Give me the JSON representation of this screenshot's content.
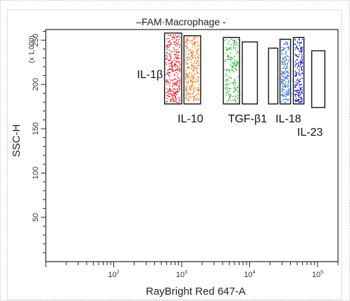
{
  "chart_data": {
    "type": "scatter",
    "title": "–FAM·Macrophage -",
    "xlabel": "RayBright Red 647-A",
    "ylabel": "SSC-H",
    "y_multiplier": "(x 1,000)",
    "x_scale": "log",
    "xlim": [
      10,
      200000
    ],
    "ylim": [
      0,
      262
    ],
    "x_ticks": [
      {
        "base": "10",
        "exp": "2",
        "value": 100
      },
      {
        "base": "10",
        "exp": "3",
        "value": 1000
      },
      {
        "base": "10",
        "exp": "4",
        "value": 10000
      },
      {
        "base": "10",
        "exp": "5",
        "value": 100000
      }
    ],
    "y_ticks": [
      50,
      100,
      150,
      200,
      250
    ],
    "grid": false,
    "gates": [
      {
        "xmin": 560,
        "xmax": 1000,
        "ymin": 178,
        "ymax": 258,
        "color": "#e8252a",
        "events": 320
      },
      {
        "xmin": 1080,
        "xmax": 1900,
        "ymin": 178,
        "ymax": 255,
        "color": "#f47d20",
        "events": 280
      },
      {
        "xmin": 4100,
        "xmax": 7100,
        "ymin": 178,
        "ymax": 253,
        "color": "#2cb531",
        "events": 170
      },
      {
        "xmin": 7800,
        "xmax": 13000,
        "ymin": 178,
        "ymax": 248,
        "color": "#cccccc",
        "events": 0
      },
      {
        "xmin": 19000,
        "xmax": 26000,
        "ymin": 178,
        "ymax": 241,
        "color": "#cccccc",
        "events": 0
      },
      {
        "xmin": 28000,
        "xmax": 40000,
        "ymin": 178,
        "ymax": 251,
        "color": "#3a7fd5",
        "events": 190
      },
      {
        "xmin": 44000,
        "xmax": 63000,
        "ymin": 178,
        "ymax": 253,
        "color": "#2222c4",
        "events": 190
      },
      {
        "xmin": 82000,
        "xmax": 128000,
        "ymin": 174,
        "ymax": 238,
        "color": "#cccccc",
        "events": 0
      }
    ],
    "annotations": [
      {
        "text": "IL-1β",
        "x": 220,
        "y": 212
      },
      {
        "text": "IL-10",
        "x": 870,
        "y": 162
      },
      {
        "text": "TGF-β1",
        "x": 4800,
        "y": 162
      },
      {
        "text": "IL-18",
        "x": 24000,
        "y": 162
      },
      {
        "text": "IL-23",
        "x": 50000,
        "y": 147
      }
    ]
  }
}
